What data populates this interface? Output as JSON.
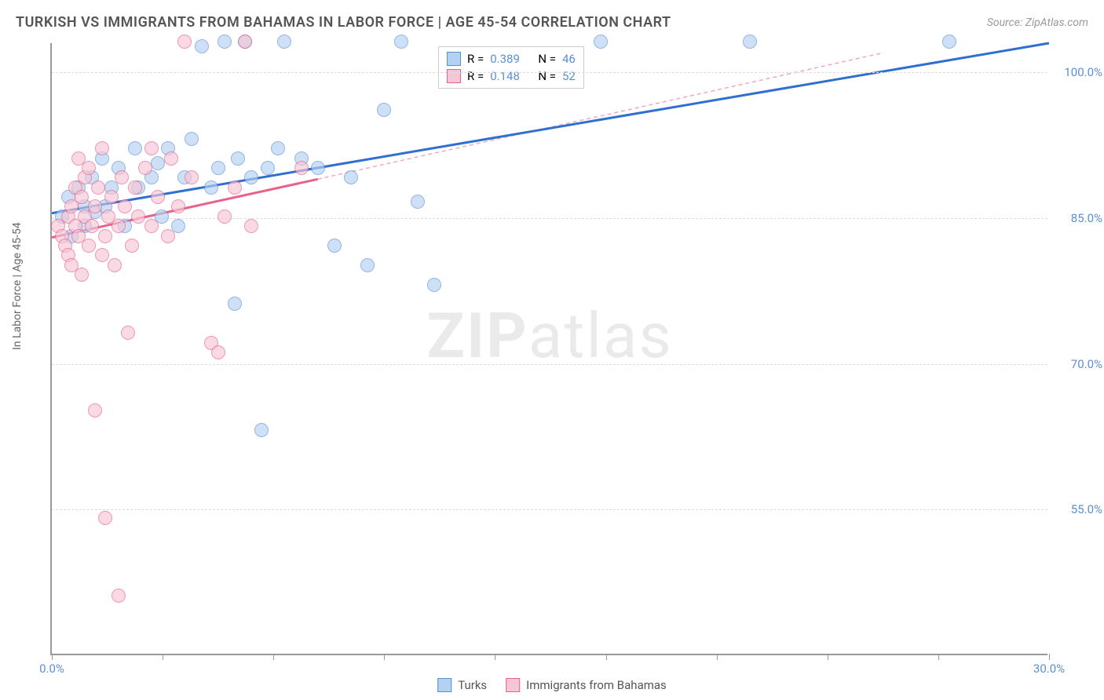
{
  "title": "TURKISH VS IMMIGRANTS FROM BAHAMAS IN LABOR FORCE | AGE 45-54 CORRELATION CHART",
  "source": "Source: ZipAtlas.com",
  "ylabel": "In Labor Force | Age 45-54",
  "watermark_bold": "ZIP",
  "watermark_light": "atlas",
  "chart": {
    "type": "scatter",
    "xlim": [
      0,
      30
    ],
    "ylim": [
      40,
      103
    ],
    "y_ticks": [
      55.0,
      70.0,
      85.0,
      100.0
    ],
    "y_tick_labels": [
      "55.0%",
      "70.0%",
      "85.0%",
      "100.0%"
    ],
    "x_ticks": [
      0,
      3.33,
      6.67,
      10,
      13.33,
      16.67,
      20,
      23.33,
      26.67,
      30
    ],
    "x_tick_labels": {
      "0": "0.0%",
      "30": "30.0%"
    },
    "background_color": "#ffffff",
    "grid_color": "#dddddd",
    "axis_color": "#999999",
    "marker_radius": 9,
    "series": [
      {
        "name": "Turks",
        "fill": "#b3d1f0",
        "stroke": "#5b8fd6",
        "R": "0.389",
        "N": "46",
        "trend": {
          "x1": 0,
          "y1": 85.5,
          "x2": 30,
          "y2": 103,
          "color": "#2f6fd0",
          "width": 3,
          "dash": "none"
        },
        "trend_ext": null,
        "points": [
          [
            0.3,
            85
          ],
          [
            0.5,
            87
          ],
          [
            0.6,
            83
          ],
          [
            0.8,
            88
          ],
          [
            1.0,
            86
          ],
          [
            1.0,
            84
          ],
          [
            1.2,
            89
          ],
          [
            1.3,
            85.5
          ],
          [
            1.5,
            91
          ],
          [
            1.6,
            86
          ],
          [
            1.8,
            88
          ],
          [
            2.0,
            90
          ],
          [
            2.2,
            84
          ],
          [
            2.5,
            92
          ],
          [
            2.6,
            88
          ],
          [
            3.0,
            89
          ],
          [
            3.2,
            90.5
          ],
          [
            3.3,
            85
          ],
          [
            3.5,
            92
          ],
          [
            3.8,
            84
          ],
          [
            4.0,
            89
          ],
          [
            4.2,
            93
          ],
          [
            4.5,
            102.5
          ],
          [
            4.8,
            88
          ],
          [
            5.0,
            90
          ],
          [
            5.2,
            103
          ],
          [
            5.5,
            76
          ],
          [
            5.6,
            91
          ],
          [
            5.8,
            103
          ],
          [
            6.0,
            89
          ],
          [
            6.3,
            63
          ],
          [
            6.5,
            90
          ],
          [
            6.8,
            92
          ],
          [
            7.0,
            103
          ],
          [
            7.5,
            91
          ],
          [
            8.0,
            90
          ],
          [
            8.5,
            82
          ],
          [
            9.0,
            89
          ],
          [
            9.5,
            80
          ],
          [
            10.0,
            96
          ],
          [
            10.5,
            103
          ],
          [
            11.0,
            86.5
          ],
          [
            11.5,
            78
          ],
          [
            16.5,
            103
          ],
          [
            21.0,
            103
          ],
          [
            27.0,
            103
          ]
        ]
      },
      {
        "name": "Immigrants from Bahamas",
        "fill": "#f5c6d6",
        "stroke": "#e8628b",
        "R": "0.148",
        "N": "52",
        "trend": {
          "x1": 0,
          "y1": 83,
          "x2": 8,
          "y2": 89,
          "color": "#e8628b",
          "width": 3,
          "dash": "none"
        },
        "trend_ext": {
          "x1": 8,
          "y1": 89,
          "x2": 25,
          "y2": 102,
          "color": "#f0a8bd",
          "width": 1.5,
          "dash": "5,4"
        },
        "points": [
          [
            0.2,
            84
          ],
          [
            0.3,
            83
          ],
          [
            0.4,
            82
          ],
          [
            0.5,
            85
          ],
          [
            0.5,
            81
          ],
          [
            0.6,
            86
          ],
          [
            0.6,
            80
          ],
          [
            0.7,
            84
          ],
          [
            0.7,
            88
          ],
          [
            0.8,
            83
          ],
          [
            0.8,
            91
          ],
          [
            0.9,
            87
          ],
          [
            0.9,
            79
          ],
          [
            1.0,
            85
          ],
          [
            1.0,
            89
          ],
          [
            1.1,
            82
          ],
          [
            1.1,
            90
          ],
          [
            1.2,
            84
          ],
          [
            1.3,
            86
          ],
          [
            1.3,
            65
          ],
          [
            1.4,
            88
          ],
          [
            1.5,
            81
          ],
          [
            1.5,
            92
          ],
          [
            1.6,
            83
          ],
          [
            1.6,
            54
          ],
          [
            1.7,
            85
          ],
          [
            1.8,
            87
          ],
          [
            1.9,
            80
          ],
          [
            2.0,
            84
          ],
          [
            2.0,
            46
          ],
          [
            2.1,
            89
          ],
          [
            2.2,
            86
          ],
          [
            2.3,
            73
          ],
          [
            2.4,
            82
          ],
          [
            2.5,
            88
          ],
          [
            2.6,
            85
          ],
          [
            2.8,
            90
          ],
          [
            3.0,
            84
          ],
          [
            3.0,
            92
          ],
          [
            3.2,
            87
          ],
          [
            3.5,
            83
          ],
          [
            3.6,
            91
          ],
          [
            3.8,
            86
          ],
          [
            4.0,
            103
          ],
          [
            4.2,
            89
          ],
          [
            4.8,
            72
          ],
          [
            5.0,
            71
          ],
          [
            5.2,
            85
          ],
          [
            5.5,
            88
          ],
          [
            5.8,
            103
          ],
          [
            6.0,
            84
          ],
          [
            7.5,
            90
          ]
        ]
      }
    ]
  },
  "stats_labels": {
    "R": "R =",
    "N": "N ="
  },
  "legend": {
    "series1": "Turks",
    "series2": "Immigrants from Bahamas"
  }
}
